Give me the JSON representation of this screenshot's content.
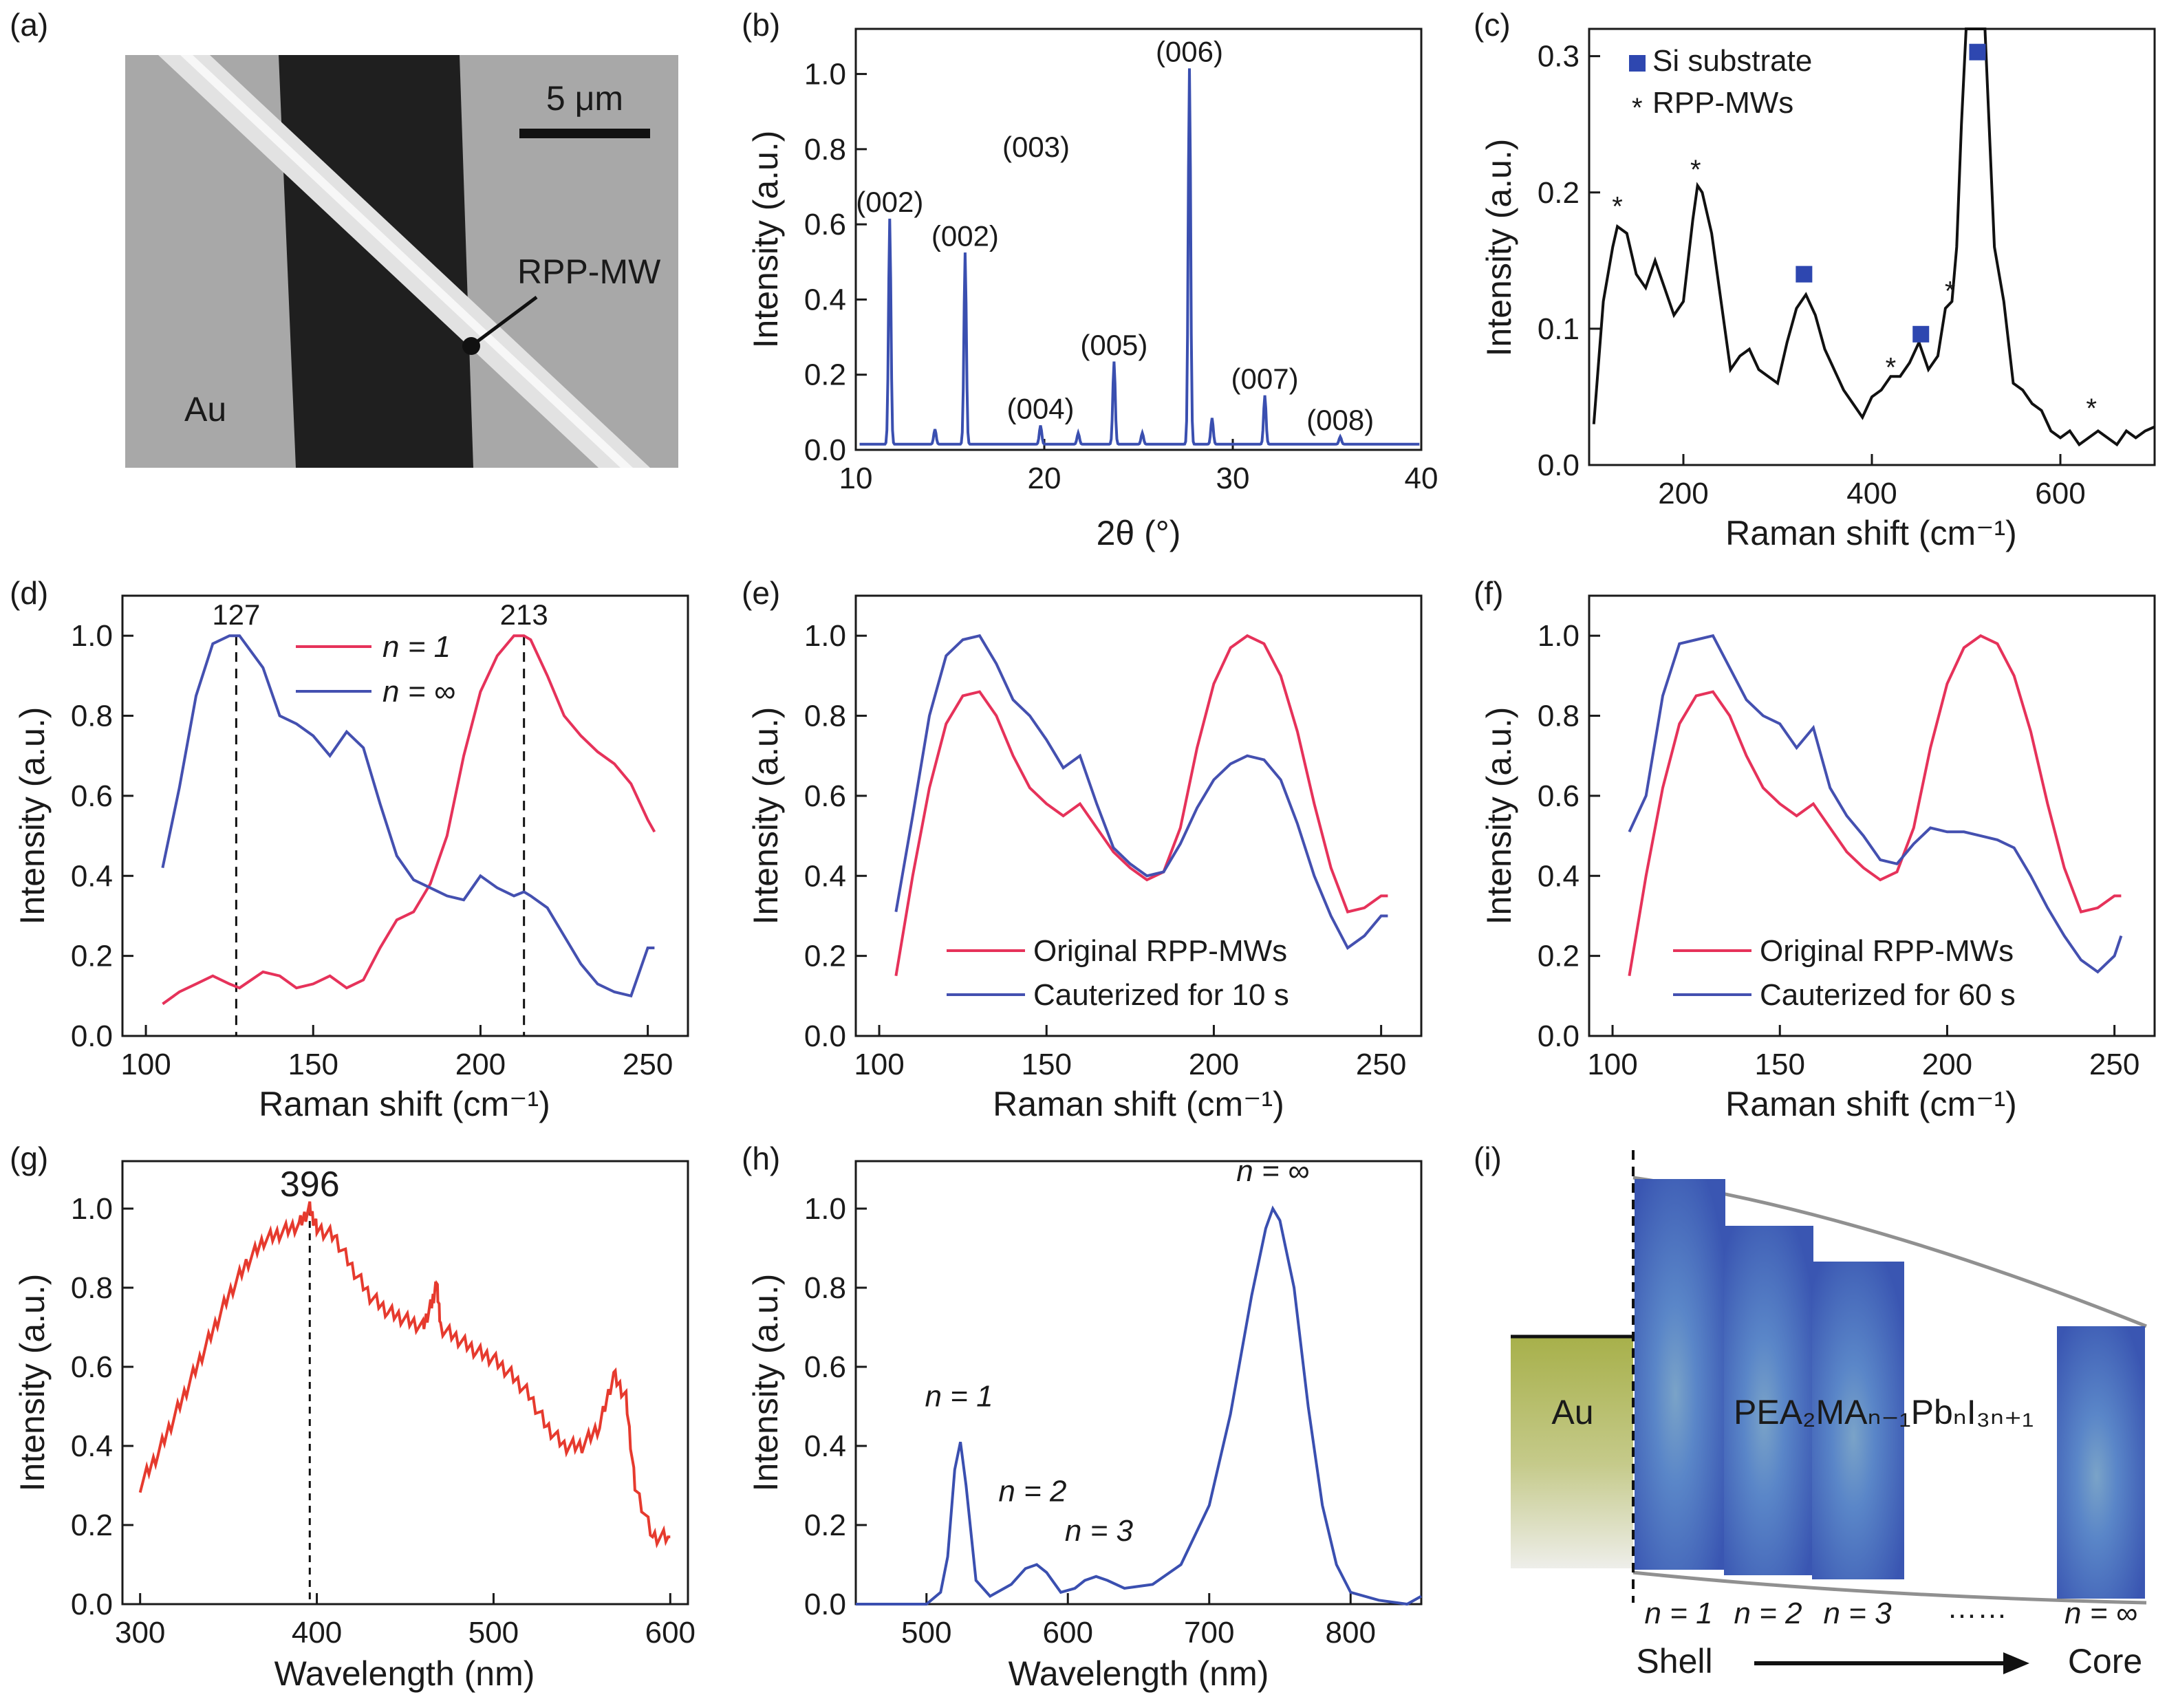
{
  "chart_data": [
    {
      "panel": "(a)",
      "type": "other",
      "labels": {
        "scale": "5 μm",
        "wire": "RPP-MW",
        "electrode": "Au"
      }
    },
    {
      "panel": "(b)",
      "type": "line",
      "xlabel": "2θ (°)",
      "ylabel": "Intensity (a.u.)",
      "xlim": [
        10,
        40
      ],
      "ylim": [
        0,
        1.12
      ],
      "xticks": [
        "10",
        "20",
        "30",
        "40"
      ],
      "yticks": [
        "0.0",
        "0.2",
        "0.4",
        "0.6",
        "0.8",
        "1.0"
      ],
      "color": "#3a4fb0",
      "peaks": [
        {
          "x": 11.8,
          "y": 0.6,
          "label": "(002)"
        },
        {
          "x": 14.2,
          "y": 0.04,
          "label": ""
        },
        {
          "x": 15.8,
          "y": 0.51,
          "label": "(002)"
        },
        {
          "x": 19.8,
          "y": 0.05,
          "label": "(004)"
        },
        {
          "x": 21.8,
          "y": 0.03,
          "label": ""
        },
        {
          "x": 23.7,
          "y": 0.22,
          "label": "(005)"
        },
        {
          "x": 25.2,
          "y": 0.03,
          "label": ""
        },
        {
          "x": 27.7,
          "y": 1.0,
          "label": "(006)"
        },
        {
          "x": 28.9,
          "y": 0.07,
          "label": ""
        },
        {
          "x": 31.7,
          "y": 0.13,
          "label": "(007)"
        },
        {
          "x": 35.7,
          "y": 0.02,
          "label": "(008)"
        }
      ],
      "floating_label": "(003)"
    },
    {
      "panel": "(c)",
      "type": "line",
      "xlabel": "Raman shift (cm⁻¹)",
      "ylabel": "Intensity (a.u.)",
      "xlim": [
        100,
        700
      ],
      "ylim": [
        0,
        0.32
      ],
      "xticks": [
        "200",
        "400",
        "600"
      ],
      "yticks": [
        "0.0",
        "0.1",
        "0.2",
        "0.3"
      ],
      "legend": [
        {
          "name": "Si substrate",
          "marker": "square",
          "color": "#2e47b0"
        },
        {
          "name": "RPP-MWs",
          "marker": "asterisk",
          "color": "#e0336a"
        }
      ],
      "x": [
        105,
        115,
        125,
        130,
        140,
        150,
        160,
        170,
        180,
        190,
        200,
        210,
        215,
        220,
        230,
        240,
        250,
        260,
        270,
        280,
        290,
        300,
        310,
        320,
        330,
        340,
        350,
        360,
        370,
        380,
        390,
        400,
        410,
        420,
        430,
        440,
        450,
        460,
        470,
        478,
        485,
        490,
        495,
        500,
        505,
        510,
        515,
        520,
        530,
        540,
        550,
        560,
        570,
        580,
        590,
        600,
        610,
        620,
        630,
        640,
        650,
        660,
        670,
        680,
        690,
        700
      ],
      "values": [
        0.03,
        0.12,
        0.16,
        0.175,
        0.17,
        0.14,
        0.13,
        0.15,
        0.13,
        0.11,
        0.12,
        0.18,
        0.205,
        0.2,
        0.17,
        0.12,
        0.07,
        0.08,
        0.085,
        0.07,
        0.065,
        0.06,
        0.09,
        0.115,
        0.125,
        0.11,
        0.085,
        0.07,
        0.055,
        0.045,
        0.035,
        0.05,
        0.055,
        0.065,
        0.065,
        0.075,
        0.09,
        0.07,
        0.08,
        0.115,
        0.12,
        0.16,
        0.25,
        0.33,
        0.33,
        0.33,
        0.33,
        0.33,
        0.16,
        0.12,
        0.06,
        0.055,
        0.045,
        0.04,
        0.025,
        0.02,
        0.025,
        0.015,
        0.02,
        0.025,
        0.02,
        0.015,
        0.025,
        0.02,
        0.025,
        0.028
      ],
      "si_markers": [
        [
          328,
          0.14
        ],
        [
          452,
          0.096
        ],
        [
          512,
          0.303
        ]
      ],
      "rpp_markers": [
        [
          130,
          0.19
        ],
        [
          213,
          0.217
        ],
        [
          420,
          0.072
        ],
        [
          483,
          0.128
        ],
        [
          633,
          0.042
        ]
      ],
      "color": "#111111"
    },
    {
      "panel": "(d)",
      "type": "line",
      "xlabel": "Raman shift (cm⁻¹)",
      "ylabel": "Intensity (a.u.)",
      "xlim": [
        93,
        262
      ],
      "ylim": [
        0,
        1.1
      ],
      "xticks": [
        "100",
        "150",
        "200",
        "250"
      ],
      "yticks": [
        "0.0",
        "0.2",
        "0.4",
        "0.6",
        "0.8",
        "1.0"
      ],
      "x": [
        105,
        110,
        115,
        120,
        125,
        128,
        135,
        140,
        145,
        150,
        155,
        160,
        165,
        170,
        175,
        180,
        185,
        190,
        195,
        200,
        205,
        210,
        213,
        215,
        220,
        225,
        230,
        235,
        240,
        245,
        250,
        252
      ],
      "series": [
        {
          "name": "n = 1",
          "color": "#e6325a",
          "values": [
            0.08,
            0.11,
            0.13,
            0.15,
            0.13,
            0.12,
            0.16,
            0.15,
            0.12,
            0.13,
            0.15,
            0.12,
            0.14,
            0.22,
            0.29,
            0.31,
            0.38,
            0.5,
            0.7,
            0.86,
            0.95,
            1.0,
            1.0,
            0.99,
            0.9,
            0.8,
            0.75,
            0.71,
            0.68,
            0.63,
            0.54,
            0.51
          ]
        },
        {
          "name": "n = ∞",
          "color": "#4450b0",
          "values": [
            0.42,
            0.62,
            0.85,
            0.98,
            1.0,
            1.0,
            0.92,
            0.8,
            0.78,
            0.75,
            0.7,
            0.76,
            0.72,
            0.58,
            0.45,
            0.39,
            0.37,
            0.35,
            0.34,
            0.4,
            0.37,
            0.35,
            0.36,
            0.35,
            0.32,
            0.25,
            0.18,
            0.13,
            0.11,
            0.1,
            0.22,
            0.22
          ]
        }
      ],
      "annotations": [
        "127",
        "213"
      ],
      "vlines": [
        127,
        213
      ]
    },
    {
      "panel": "(e)",
      "type": "line",
      "xlabel": "Raman shift (cm⁻¹)",
      "ylabel": "Intensity (a.u.)",
      "xlim": [
        93,
        262
      ],
      "ylim": [
        0,
        1.1
      ],
      "xticks": [
        "100",
        "150",
        "200",
        "250"
      ],
      "yticks": [
        "0.0",
        "0.2",
        "0.4",
        "0.6",
        "0.8",
        "1.0"
      ],
      "x": [
        105,
        110,
        115,
        120,
        125,
        130,
        135,
        140,
        145,
        150,
        155,
        160,
        165,
        170,
        175,
        180,
        185,
        190,
        195,
        200,
        205,
        210,
        215,
        220,
        225,
        230,
        235,
        240,
        245,
        250,
        252
      ],
      "series": [
        {
          "name": "Original RPP-MWs",
          "color": "#e6325a",
          "values": [
            0.15,
            0.4,
            0.62,
            0.78,
            0.85,
            0.86,
            0.8,
            0.7,
            0.62,
            0.58,
            0.55,
            0.58,
            0.52,
            0.46,
            0.42,
            0.39,
            0.41,
            0.52,
            0.72,
            0.88,
            0.97,
            1.0,
            0.98,
            0.9,
            0.76,
            0.58,
            0.42,
            0.31,
            0.32,
            0.35,
            0.35
          ]
        },
        {
          "name": "Cauterized for 10 s",
          "color": "#4450b0",
          "values": [
            0.31,
            0.55,
            0.8,
            0.95,
            0.99,
            1.0,
            0.93,
            0.84,
            0.8,
            0.74,
            0.67,
            0.7,
            0.58,
            0.47,
            0.43,
            0.4,
            0.41,
            0.48,
            0.57,
            0.64,
            0.68,
            0.7,
            0.69,
            0.64,
            0.53,
            0.4,
            0.3,
            0.22,
            0.25,
            0.3,
            0.3
          ]
        }
      ]
    },
    {
      "panel": "(f)",
      "type": "line",
      "xlabel": "Raman shift (cm⁻¹)",
      "ylabel": "Intensity (a.u.)",
      "xlim": [
        93,
        262
      ],
      "ylim": [
        0,
        1.1
      ],
      "xticks": [
        "100",
        "150",
        "200",
        "250"
      ],
      "yticks": [
        "0.0",
        "0.2",
        "0.4",
        "0.6",
        "0.8",
        "1.0"
      ],
      "x": [
        105,
        110,
        115,
        120,
        125,
        130,
        135,
        140,
        145,
        150,
        155,
        160,
        165,
        170,
        175,
        180,
        185,
        190,
        195,
        200,
        205,
        210,
        215,
        220,
        225,
        230,
        235,
        240,
        245,
        250,
        252
      ],
      "series": [
        {
          "name": "Original RPP-MWs",
          "color": "#e6325a",
          "values": [
            0.15,
            0.4,
            0.62,
            0.78,
            0.85,
            0.86,
            0.8,
            0.7,
            0.62,
            0.58,
            0.55,
            0.58,
            0.52,
            0.46,
            0.42,
            0.39,
            0.41,
            0.52,
            0.72,
            0.88,
            0.97,
            1.0,
            0.98,
            0.9,
            0.76,
            0.58,
            0.42,
            0.31,
            0.32,
            0.35,
            0.35
          ]
        },
        {
          "name": "Cauterized for 60 s",
          "color": "#4450b0",
          "values": [
            0.51,
            0.6,
            0.85,
            0.98,
            0.99,
            1.0,
            0.92,
            0.84,
            0.8,
            0.78,
            0.72,
            0.77,
            0.62,
            0.55,
            0.5,
            0.44,
            0.43,
            0.48,
            0.52,
            0.51,
            0.51,
            0.5,
            0.49,
            0.47,
            0.4,
            0.32,
            0.25,
            0.19,
            0.16,
            0.2,
            0.25
          ]
        }
      ]
    },
    {
      "panel": "(g)",
      "type": "line",
      "xlabel": "Wavelength (nm)",
      "ylabel": "Intensity (a.u.)",
      "xlim": [
        290,
        610
      ],
      "ylim": [
        0,
        1.12
      ],
      "xticks": [
        "300",
        "400",
        "500",
        "600"
      ],
      "yticks": [
        "0.0",
        "0.2",
        "0.4",
        "0.6",
        "0.8",
        "1.0"
      ],
      "x": [
        300,
        310,
        320,
        330,
        340,
        350,
        360,
        370,
        380,
        390,
        396,
        400,
        410,
        420,
        430,
        440,
        450,
        460,
        465,
        468,
        470,
        480,
        490,
        500,
        510,
        520,
        530,
        540,
        550,
        560,
        568,
        575,
        580,
        590,
        600
      ],
      "values": [
        0.3,
        0.38,
        0.48,
        0.58,
        0.68,
        0.78,
        0.86,
        0.92,
        0.94,
        0.96,
        1.0,
        0.95,
        0.93,
        0.85,
        0.78,
        0.74,
        0.72,
        0.7,
        0.76,
        0.81,
        0.7,
        0.67,
        0.64,
        0.62,
        0.58,
        0.53,
        0.45,
        0.4,
        0.4,
        0.45,
        0.58,
        0.52,
        0.3,
        0.17,
        0.17
      ],
      "color": "#e63a2e",
      "annotation": "396",
      "vline": 396
    },
    {
      "panel": "(h)",
      "type": "line",
      "xlabel": "Wavelength (nm)",
      "ylabel": "Intensity (a.u.)",
      "xlim": [
        450,
        850
      ],
      "ylim": [
        0,
        1.12
      ],
      "xticks": [
        "500",
        "600",
        "700",
        "800"
      ],
      "yticks": [
        "0.0",
        "0.2",
        "0.4",
        "0.6",
        "0.8",
        "1.0"
      ],
      "x": [
        450,
        480,
        500,
        510,
        515,
        520,
        524,
        528,
        535,
        545,
        560,
        570,
        578,
        585,
        595,
        605,
        612,
        620,
        628,
        640,
        660,
        680,
        700,
        715,
        730,
        740,
        745,
        750,
        760,
        770,
        780,
        790,
        800,
        820,
        840,
        850
      ],
      "values": [
        0.0,
        0.0,
        0.0,
        0.03,
        0.12,
        0.34,
        0.41,
        0.3,
        0.06,
        0.02,
        0.05,
        0.09,
        0.1,
        0.08,
        0.03,
        0.04,
        0.06,
        0.07,
        0.06,
        0.04,
        0.05,
        0.1,
        0.25,
        0.48,
        0.78,
        0.95,
        1.0,
        0.97,
        0.8,
        0.5,
        0.25,
        0.1,
        0.03,
        0.01,
        0.0,
        0.02
      ],
      "color": "#3a4fb0",
      "annotations": [
        {
          "text": "n = 1",
          "x": 523,
          "y": 0.5
        },
        {
          "text": "n = 2",
          "x": 575,
          "y": 0.26
        },
        {
          "text": "n = 3",
          "x": 622,
          "y": 0.16
        },
        {
          "text": "n = ∞",
          "x": 745,
          "y": 1.07
        }
      ]
    },
    {
      "panel": "(i)",
      "type": "diagram",
      "labels": {
        "au": "Au",
        "formula": "PEA₂MAₙ₋₁PbₙI₃ₙ₊₁",
        "layers": [
          "n = 1",
          "n = 2",
          "n = 3",
          "n = ∞"
        ],
        "dots": "……",
        "shell": "Shell",
        "core": "Core"
      }
    }
  ]
}
